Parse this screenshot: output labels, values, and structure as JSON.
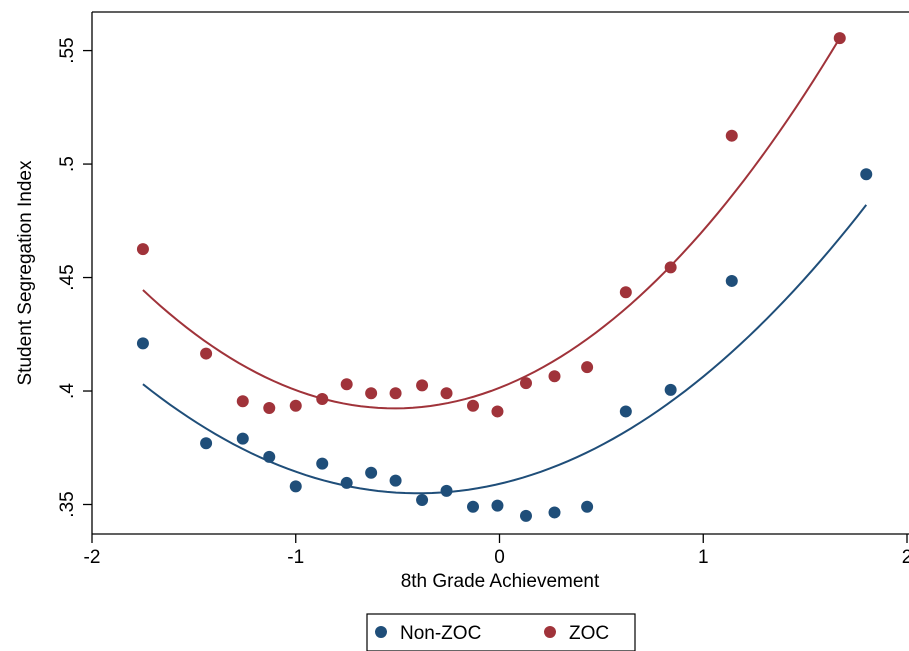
{
  "chart_data": {
    "type": "scatter",
    "xlabel": "8th Grade Achievement",
    "ylabel": "Student Segregation Index",
    "xlim": [
      -2,
      2
    ],
    "ylim": [
      0.337,
      0.567
    ],
    "xticks": [
      -2,
      -1,
      0,
      1,
      2
    ],
    "xtick_labels": [
      "-2",
      "-1",
      "0",
      "1",
      "2"
    ],
    "yticks": [
      0.35,
      0.4,
      0.45,
      0.5,
      0.55
    ],
    "ytick_labels": [
      ".35",
      ".4",
      ".45",
      ".5",
      ".55"
    ],
    "grid": false,
    "legend": "bottom",
    "series": [
      {
        "name": "Non-ZOC",
        "color": "#1f4e79",
        "points": [
          [
            -1.75,
            0.421
          ],
          [
            -1.44,
            0.377
          ],
          [
            -1.26,
            0.379
          ],
          [
            -1.13,
            0.371
          ],
          [
            -1.0,
            0.358
          ],
          [
            -0.87,
            0.368
          ],
          [
            -0.75,
            0.3595
          ],
          [
            -0.63,
            0.364
          ],
          [
            -0.51,
            0.3605
          ],
          [
            -0.38,
            0.352
          ],
          [
            -0.26,
            0.356
          ],
          [
            -0.13,
            0.349
          ],
          [
            -0.01,
            0.3495
          ],
          [
            0.13,
            0.345
          ],
          [
            0.27,
            0.3465
          ],
          [
            0.43,
            0.349
          ],
          [
            0.62,
            0.391
          ],
          [
            0.84,
            0.4005
          ],
          [
            1.14,
            0.4485
          ],
          [
            1.8,
            0.4955
          ]
        ],
        "fit": {
          "type": "quadratic",
          "x_range": [
            -1.75,
            1.8
          ],
          "curve": [
            [
              -1.75,
              0.403
            ],
            [
              -0.45,
              0.355
            ],
            [
              1.8,
              0.482
            ]
          ]
        }
      },
      {
        "name": "ZOC",
        "color": "#a0333a",
        "points": [
          [
            -1.75,
            0.4625
          ],
          [
            -1.44,
            0.4165
          ],
          [
            -1.26,
            0.3955
          ],
          [
            -1.13,
            0.3925
          ],
          [
            -1.0,
            0.3935
          ],
          [
            -0.87,
            0.3965
          ],
          [
            -0.75,
            0.403
          ],
          [
            -0.63,
            0.399
          ],
          [
            -0.51,
            0.399
          ],
          [
            -0.38,
            0.4025
          ],
          [
            -0.26,
            0.399
          ],
          [
            -0.13,
            0.3935
          ],
          [
            -0.01,
            0.391
          ],
          [
            0.13,
            0.4035
          ],
          [
            0.27,
            0.4065
          ],
          [
            0.43,
            0.4105
          ],
          [
            0.62,
            0.4435
          ],
          [
            0.84,
            0.4545
          ],
          [
            1.14,
            0.5125
          ],
          [
            1.67,
            0.5555
          ]
        ],
        "fit": {
          "type": "quadratic",
          "x_range": [
            -1.75,
            1.67
          ],
          "curve": [
            [
              -1.75,
              0.4445
            ],
            [
              -0.45,
              0.3925
            ],
            [
              1.67,
              0.5555
            ]
          ]
        }
      }
    ]
  }
}
